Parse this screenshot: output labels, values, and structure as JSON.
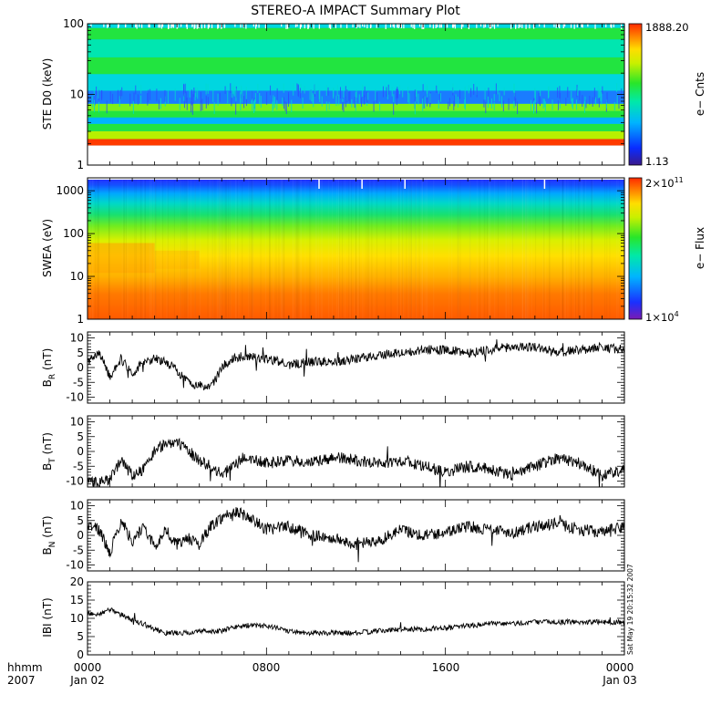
{
  "title": "STEREO-A IMPACT Summary Plot",
  "bottom_labels": {
    "hhmm": "hhmm",
    "year": "2007",
    "x_ticks": [
      "0000",
      "0800",
      "1600",
      "0000"
    ],
    "x_dates": [
      "Jan 02",
      "",
      "",
      "Jan 03"
    ]
  },
  "timestamp": "Sat May 19 20:15:32 2007",
  "colors": {
    "trace": "#000000",
    "frame": "#000000",
    "background": "#ffffff"
  },
  "chart_data": [
    {
      "type": "heatmap",
      "panel": "ste",
      "ylabel": "STE D0 (keV)",
      "y_scale": "log",
      "ylim": [
        1,
        100
      ],
      "y_ticks": [
        "100",
        "10",
        "1"
      ],
      "colorbar": {
        "label": "e− Cnts",
        "max": "1888.20",
        "min": "1.13"
      },
      "xlim_hours": [
        0,
        24
      ],
      "bands": [
        {
          "energy_keV": 2.1,
          "level": "high (red)"
        },
        {
          "energy_keV": 2.6,
          "level": "yellow-green"
        },
        {
          "energy_keV": 3.5,
          "level": "green"
        },
        {
          "energy_keV": 4.2,
          "level": "cyan-blue"
        },
        {
          "energy_keV": 5.3,
          "level": "green"
        },
        {
          "energy_keV": 6.4,
          "level": "green-yellow"
        },
        {
          "energy_keV": 8.5,
          "level": "blue (low)"
        },
        {
          "energy_keV": 15,
          "level": "cyan"
        },
        {
          "energy_keV": 25,
          "level": "green"
        },
        {
          "energy_keV": 45,
          "level": "cyan-green"
        },
        {
          "energy_keV": 80,
          "level": "green"
        },
        {
          "energy_keV": 95,
          "level": "cyan"
        }
      ]
    },
    {
      "type": "heatmap",
      "panel": "swea",
      "ylabel": "SWEA (eV)",
      "y_scale": "log",
      "ylim": [
        1,
        2000
      ],
      "y_ticks": [
        "1000",
        "100",
        "10",
        "1"
      ],
      "colorbar": {
        "label": "e− Flux",
        "max_base": "2×10",
        "max_exp": "11",
        "min_base": "1×10",
        "min_exp": "4"
      },
      "xlim_hours": [
        0,
        24
      ],
      "profile": "flux decreasing with energy: red below ~5 eV, orange ~10 eV, yellow ~50 eV, green ~200 eV, cyan ~600 eV, blue above ~1000 eV"
    },
    {
      "type": "line",
      "panel": "br",
      "ylabel_main": "B",
      "ylabel_sub": "R",
      "ylabel_unit": " (nT)",
      "ylim": [
        -12,
        12
      ],
      "y_ticks": [
        10,
        5,
        0,
        -5,
        -10
      ],
      "x_hours": [
        0,
        0.5,
        1,
        1.5,
        2,
        2.5,
        3,
        3.5,
        4,
        4.5,
        5,
        5.5,
        6,
        6.5,
        7,
        8,
        9,
        10,
        11,
        12,
        13,
        14,
        15,
        16,
        17,
        18,
        19,
        20,
        21,
        22,
        23,
        24
      ],
      "values": [
        2,
        5,
        -3,
        3,
        -2,
        2,
        3,
        2,
        -1,
        -5,
        -6,
        -7,
        0,
        3,
        4,
        3,
        1,
        2,
        2,
        3,
        4,
        5,
        6,
        6,
        5,
        6,
        7,
        7,
        5,
        6,
        7,
        6
      ],
      "noise": 1.6
    },
    {
      "type": "line",
      "panel": "bt",
      "ylabel_main": "B",
      "ylabel_sub": "T",
      "ylabel_unit": " (nT)",
      "ylim": [
        -12,
        12
      ],
      "y_ticks": [
        10,
        5,
        0,
        -5,
        -10
      ],
      "x_hours": [
        0,
        0.5,
        1,
        1.5,
        2,
        2.5,
        3,
        3.5,
        4,
        4.5,
        5,
        5.5,
        6,
        6.5,
        7,
        8,
        9,
        10,
        11,
        12,
        13,
        14,
        15,
        16,
        17,
        18,
        19,
        20,
        21,
        22,
        23,
        24
      ],
      "values": [
        -10,
        -11,
        -9,
        -3,
        -8,
        -6,
        0,
        3,
        3,
        0,
        -3,
        -5,
        -8,
        -5,
        -2,
        -4,
        -3,
        -4,
        -2,
        -3,
        -4,
        -3,
        -5,
        -7,
        -5,
        -6,
        -8,
        -5,
        -2,
        -4,
        -8,
        -6
      ],
      "noise": 2.0
    },
    {
      "type": "line",
      "panel": "bn",
      "ylabel_main": "B",
      "ylabel_sub": "N",
      "ylabel_unit": " (nT)",
      "ylim": [
        -12,
        12
      ],
      "y_ticks": [
        10,
        5,
        0,
        -5,
        -10
      ],
      "x_hours": [
        0,
        0.5,
        1,
        1.5,
        2,
        2.5,
        3,
        3.5,
        4,
        4.5,
        5,
        5.5,
        6,
        6.5,
        7,
        8,
        9,
        10,
        11,
        12,
        13,
        14,
        15,
        16,
        17,
        18,
        19,
        20,
        21,
        22,
        23,
        24
      ],
      "values": [
        4,
        2,
        -6,
        5,
        -2,
        3,
        -4,
        2,
        -3,
        -1,
        -3,
        3,
        6,
        8,
        7,
        2,
        3,
        0,
        -1,
        -3,
        -2,
        2,
        0,
        1,
        3,
        2,
        1,
        3,
        4,
        2,
        1,
        3
      ],
      "noise": 2.0
    },
    {
      "type": "line",
      "panel": "bmag",
      "ylabel": "IBI (nT)",
      "ylim": [
        0,
        20
      ],
      "y_ticks": [
        20,
        15,
        10,
        5,
        0
      ],
      "x_hours": [
        0,
        0.5,
        1,
        1.5,
        2,
        2.5,
        3,
        3.5,
        4,
        4.5,
        5,
        5.5,
        6,
        6.5,
        7,
        8,
        9,
        10,
        11,
        12,
        13,
        14,
        15,
        16,
        17,
        18,
        19,
        20,
        21,
        22,
        23,
        24
      ],
      "values": [
        11.5,
        11,
        12.5,
        11,
        9.5,
        8.5,
        7,
        6,
        6,
        6,
        6.5,
        6.5,
        6.5,
        7.5,
        8,
        8,
        6.5,
        6,
        6,
        6,
        6.5,
        7,
        7,
        7.5,
        8,
        8.5,
        8.5,
        9,
        9,
        9,
        9,
        9
      ],
      "noise": 0.7
    }
  ]
}
